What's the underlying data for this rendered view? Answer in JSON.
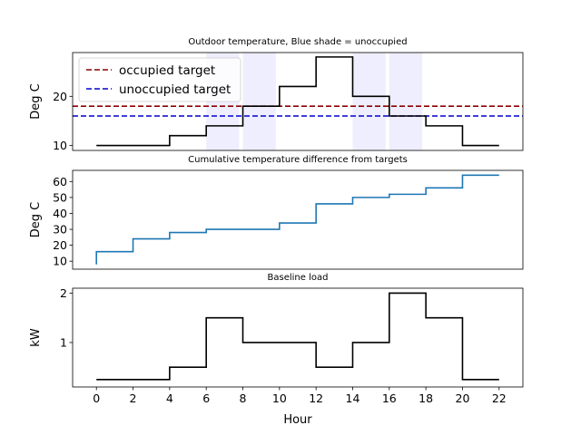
{
  "chart_data": [
    {
      "type": "line",
      "title": "Outdoor temperature, Blue shade = unoccupied",
      "xlabel": "",
      "ylabel": "Deg C",
      "xlim": [
        -1.3,
        23.3
      ],
      "ylim": [
        9,
        28.9
      ],
      "yticks": [
        10,
        20
      ],
      "shade_color": "#0000ff",
      "shaded_ranges": [
        [
          6,
          7.8
        ],
        [
          8,
          9.8
        ],
        [
          14,
          15.8
        ],
        [
          16,
          17.8
        ]
      ],
      "series": [
        {
          "name": "outdoor temperature",
          "color": "#000000",
          "step": "post",
          "x": [
            0,
            2,
            4,
            6,
            8,
            10,
            12,
            14,
            16,
            18,
            20,
            22
          ],
          "y": [
            10,
            10,
            12,
            14,
            18,
            22,
            28,
            20,
            16,
            14,
            10,
            10
          ]
        }
      ],
      "hlines": [
        {
          "name": "occupied target",
          "value": 18,
          "color": "#8b0000",
          "dash": true
        },
        {
          "name": "unoccupied target",
          "value": 16,
          "color": "#0000cd",
          "dash": true
        }
      ],
      "legend": {
        "position": "top-left",
        "entries": [
          "occupied target",
          "unoccupied target"
        ]
      }
    },
    {
      "type": "line",
      "title": "Cumulative temperature difference from targets",
      "xlabel": "",
      "ylabel": "Deg C",
      "xlim": [
        -1.3,
        23.3
      ],
      "ylim": [
        5,
        67
      ],
      "yticks": [
        10,
        20,
        30,
        40,
        50,
        60
      ],
      "series": [
        {
          "name": "cumulative difference",
          "color": "#1f77b4",
          "step": "post",
          "x": [
            0,
            0,
            2,
            4,
            6,
            8,
            10,
            12,
            14,
            16,
            18,
            20,
            22
          ],
          "y": [
            8,
            16,
            24,
            28,
            30,
            30,
            34,
            46,
            50,
            52,
            56,
            64,
            64
          ]
        }
      ]
    },
    {
      "type": "line",
      "title": "Baseline load",
      "xlabel": "Hour",
      "ylabel": "kW",
      "xlim": [
        -1.3,
        23.3
      ],
      "ylim": [
        0.1,
        2.1
      ],
      "yticks": [
        1,
        2
      ],
      "xticks": [
        0,
        2,
        4,
        6,
        8,
        10,
        12,
        14,
        16,
        18,
        20,
        22
      ],
      "series": [
        {
          "name": "baseline load",
          "color": "#000000",
          "step": "post",
          "x": [
            0,
            2,
            4,
            6,
            8,
            10,
            12,
            14,
            16,
            18,
            20,
            22
          ],
          "y": [
            0.25,
            0.25,
            0.5,
            1.5,
            1.0,
            1.0,
            0.5,
            1.0,
            2.0,
            1.5,
            0.25,
            0.25
          ]
        }
      ]
    }
  ]
}
